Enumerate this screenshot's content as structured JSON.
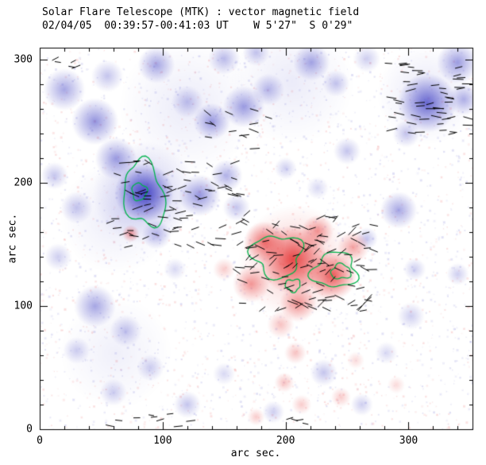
{
  "chart_data": {
    "type": "heatmap",
    "title": "Solar Flare Telescope (MTK) : vector magnetic field",
    "subtitle": "02/04/05  00:39:57-00:41:03 UT    W 5'27\"  S 0'29\"",
    "xlabel": "arc sec.",
    "ylabel": "arc sec.",
    "xlim": [
      0,
      352
    ],
    "ylim": [
      0,
      310
    ],
    "xticks": [
      0,
      100,
      200,
      300
    ],
    "yticks": [
      0,
      100,
      200,
      300
    ],
    "minor_tick_step": 20,
    "units": "arc sec.",
    "colors": {
      "background": "#ffffff",
      "negative": "#3c3cc3",
      "positive": "#e63232",
      "contour": "#00b44b",
      "vector": "#000000",
      "frame": "#000000"
    },
    "blobs": {
      "negative": [
        {
          "x": 85,
          "y": 192,
          "r": 24,
          "a": 0.95
        },
        {
          "x": 85,
          "y": 192,
          "r": 42,
          "a": 0.3
        },
        {
          "x": 95,
          "y": 158,
          "r": 12,
          "a": 0.35
        },
        {
          "x": 62,
          "y": 220,
          "r": 17,
          "a": 0.5
        },
        {
          "x": 45,
          "y": 250,
          "r": 19,
          "a": 0.55
        },
        {
          "x": 20,
          "y": 276,
          "r": 17,
          "a": 0.45
        },
        {
          "x": 55,
          "y": 287,
          "r": 13,
          "a": 0.3
        },
        {
          "x": 95,
          "y": 296,
          "r": 15,
          "a": 0.45
        },
        {
          "x": 120,
          "y": 266,
          "r": 13,
          "a": 0.3
        },
        {
          "x": 140,
          "y": 250,
          "r": 15,
          "a": 0.5
        },
        {
          "x": 166,
          "y": 262,
          "r": 17,
          "a": 0.5
        },
        {
          "x": 186,
          "y": 276,
          "r": 13,
          "a": 0.35
        },
        {
          "x": 150,
          "y": 301,
          "r": 13,
          "a": 0.35
        },
        {
          "x": 176,
          "y": 306,
          "r": 11,
          "a": 0.3
        },
        {
          "x": 221,
          "y": 298,
          "r": 15,
          "a": 0.45
        },
        {
          "x": 241,
          "y": 281,
          "r": 11,
          "a": 0.3
        },
        {
          "x": 266,
          "y": 301,
          "r": 11,
          "a": 0.25
        },
        {
          "x": 315,
          "y": 265,
          "r": 24,
          "a": 0.75
        },
        {
          "x": 340,
          "y": 298,
          "r": 17,
          "a": 0.5
        },
        {
          "x": 345,
          "y": 268,
          "r": 13,
          "a": 0.4
        },
        {
          "x": 298,
          "y": 240,
          "r": 11,
          "a": 0.3
        },
        {
          "x": 130,
          "y": 190,
          "r": 17,
          "a": 0.55
        },
        {
          "x": 152,
          "y": 206,
          "r": 13,
          "a": 0.4
        },
        {
          "x": 160,
          "y": 180,
          "r": 11,
          "a": 0.3
        },
        {
          "x": 250,
          "y": 226,
          "r": 11,
          "a": 0.3
        },
        {
          "x": 292,
          "y": 178,
          "r": 15,
          "a": 0.45
        },
        {
          "x": 266,
          "y": 155,
          "r": 9,
          "a": 0.3
        },
        {
          "x": 305,
          "y": 130,
          "r": 9,
          "a": 0.25
        },
        {
          "x": 340,
          "y": 126,
          "r": 9,
          "a": 0.25
        },
        {
          "x": 30,
          "y": 180,
          "r": 13,
          "a": 0.3
        },
        {
          "x": 12,
          "y": 206,
          "r": 11,
          "a": 0.3
        },
        {
          "x": 15,
          "y": 140,
          "r": 11,
          "a": 0.25
        },
        {
          "x": 45,
          "y": 100,
          "r": 17,
          "a": 0.45
        },
        {
          "x": 70,
          "y": 80,
          "r": 13,
          "a": 0.3
        },
        {
          "x": 30,
          "y": 64,
          "r": 11,
          "a": 0.25
        },
        {
          "x": 90,
          "y": 50,
          "r": 11,
          "a": 0.25
        },
        {
          "x": 60,
          "y": 30,
          "r": 11,
          "a": 0.25
        },
        {
          "x": 120,
          "y": 20,
          "r": 11,
          "a": 0.3
        },
        {
          "x": 150,
          "y": 45,
          "r": 9,
          "a": 0.2
        },
        {
          "x": 190,
          "y": 14,
          "r": 9,
          "a": 0.25
        },
        {
          "x": 231,
          "y": 46,
          "r": 11,
          "a": 0.3
        },
        {
          "x": 262,
          "y": 20,
          "r": 9,
          "a": 0.25
        },
        {
          "x": 282,
          "y": 62,
          "r": 9,
          "a": 0.2
        },
        {
          "x": 302,
          "y": 92,
          "r": 11,
          "a": 0.25
        },
        {
          "x": 110,
          "y": 130,
          "r": 9,
          "a": 0.2
        },
        {
          "x": 200,
          "y": 212,
          "r": 9,
          "a": 0.25
        },
        {
          "x": 226,
          "y": 196,
          "r": 9,
          "a": 0.2
        },
        {
          "x": 120,
          "y": 262,
          "r": 55,
          "a": 0.1
        },
        {
          "x": 62,
          "y": 172,
          "r": 45,
          "a": 0.1
        },
        {
          "x": 205,
          "y": 282,
          "r": 50,
          "a": 0.1
        },
        {
          "x": 62,
          "y": 62,
          "r": 45,
          "a": 0.08
        },
        {
          "x": 315,
          "y": 272,
          "r": 40,
          "a": 0.12
        }
      ],
      "positive": [
        {
          "x": 206,
          "y": 138,
          "r": 28,
          "a": 0.85
        },
        {
          "x": 208,
          "y": 136,
          "r": 46,
          "a": 0.28
        },
        {
          "x": 238,
          "y": 125,
          "r": 20,
          "a": 0.8
        },
        {
          "x": 183,
          "y": 152,
          "r": 17,
          "a": 0.7
        },
        {
          "x": 172,
          "y": 118,
          "r": 15,
          "a": 0.5
        },
        {
          "x": 210,
          "y": 102,
          "r": 15,
          "a": 0.5
        },
        {
          "x": 255,
          "y": 148,
          "r": 13,
          "a": 0.45
        },
        {
          "x": 226,
          "y": 161,
          "r": 13,
          "a": 0.5
        },
        {
          "x": 196,
          "y": 85,
          "r": 11,
          "a": 0.3
        },
        {
          "x": 208,
          "y": 62,
          "r": 9,
          "a": 0.3
        },
        {
          "x": 74,
          "y": 159,
          "r": 7,
          "a": 0.5
        },
        {
          "x": 150,
          "y": 130,
          "r": 9,
          "a": 0.25
        },
        {
          "x": 199,
          "y": 38,
          "r": 8,
          "a": 0.3
        },
        {
          "x": 213,
          "y": 20,
          "r": 8,
          "a": 0.25
        },
        {
          "x": 245,
          "y": 26,
          "r": 8,
          "a": 0.25
        },
        {
          "x": 176,
          "y": 10,
          "r": 7,
          "a": 0.25
        },
        {
          "x": 290,
          "y": 36,
          "r": 7,
          "a": 0.18
        },
        {
          "x": 257,
          "y": 56,
          "r": 7,
          "a": 0.18
        }
      ]
    },
    "contours": [
      {
        "cx": 85,
        "cy": 191,
        "rx": 16,
        "ry": 27,
        "rot": 12,
        "wob": 0.22,
        "seed": 1
      },
      {
        "cx": 81,
        "cy": 193,
        "rx": 6,
        "ry": 7,
        "rot": 0,
        "wob": 0.18,
        "seed": 2
      },
      {
        "cx": 193,
        "cy": 141,
        "rx": 20,
        "ry": 17,
        "rot": -8,
        "wob": 0.28,
        "seed": 3
      },
      {
        "cx": 240,
        "cy": 129,
        "rx": 18,
        "ry": 14,
        "rot": 6,
        "wob": 0.26,
        "seed": 4
      },
      {
        "cx": 245,
        "cy": 128,
        "rx": 8,
        "ry": 6,
        "rot": 0,
        "wob": 0.22,
        "seed": 5
      },
      {
        "cx": 206,
        "cy": 117,
        "rx": 6,
        "ry": 5,
        "rot": 0,
        "wob": 0.25,
        "seed": 6
      }
    ],
    "vector_clusters": [
      {
        "x0": 55,
        "x1": 165,
        "y0": 148,
        "y1": 218,
        "n": 78,
        "angle": -5,
        "spread": 30,
        "len": 7,
        "seed": 11
      },
      {
        "x0": 135,
        "x1": 188,
        "y0": 228,
        "y1": 266,
        "n": 13,
        "angle": -15,
        "spread": 25,
        "len": 7,
        "seed": 12
      },
      {
        "x0": 158,
        "x1": 272,
        "y0": 96,
        "y1": 180,
        "n": 115,
        "angle": 8,
        "spread": 45,
        "len": 7,
        "seed": 13
      },
      {
        "x0": 280,
        "x1": 350,
        "y0": 238,
        "y1": 298,
        "n": 52,
        "angle": 0,
        "spread": 16,
        "len": 7,
        "seed": 14
      },
      {
        "x0": 55,
        "x1": 135,
        "y0": 2,
        "y1": 14,
        "n": 9,
        "angle": 0,
        "spread": 20,
        "len": 6,
        "seed": 15
      },
      {
        "x0": 8,
        "x1": 30,
        "y0": 294,
        "y1": 308,
        "n": 5,
        "angle": 8,
        "spread": 20,
        "len": 6,
        "seed": 16
      },
      {
        "x0": 196,
        "x1": 220,
        "y0": 4,
        "y1": 12,
        "n": 4,
        "angle": 0,
        "spread": 20,
        "len": 6,
        "seed": 17
      }
    ],
    "noise": {
      "seed": 42,
      "count": 2800,
      "blue_fraction": 0.58,
      "alpha_min": 0.05,
      "alpha_max": 0.16,
      "size_min": 1,
      "size_max": 3
    }
  }
}
